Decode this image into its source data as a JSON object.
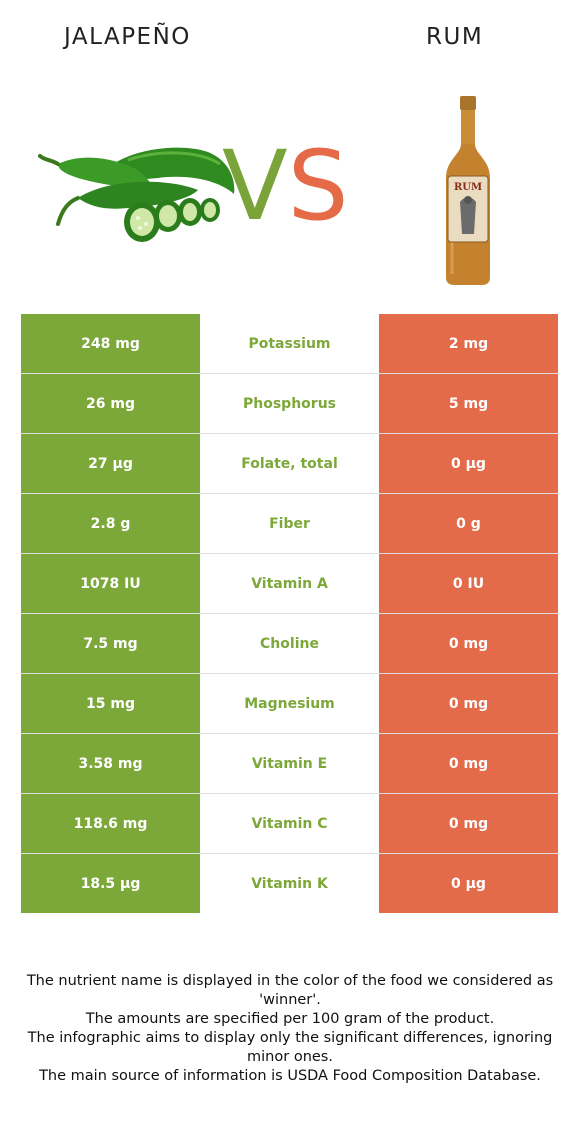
{
  "header": {
    "left_food": "JALAPEÑO",
    "right_food": "RUM",
    "vs_v": "V",
    "vs_s": "S"
  },
  "colors": {
    "winner_green": "#7ca839",
    "loser_orange": "#e46b4a"
  },
  "rows": [
    {
      "left": "248 mg",
      "nutrient": "Potassium",
      "right": "2 mg"
    },
    {
      "left": "26 mg",
      "nutrient": "Phosphorus",
      "right": "5 mg"
    },
    {
      "left": "27 µg",
      "nutrient": "Folate, total",
      "right": "0 µg"
    },
    {
      "left": "2.8 g",
      "nutrient": "Fiber",
      "right": "0 g"
    },
    {
      "left": "1078 IU",
      "nutrient": "Vitamin A",
      "right": "0 IU"
    },
    {
      "left": "7.5 mg",
      "nutrient": "Choline",
      "right": "0 mg"
    },
    {
      "left": "15 mg",
      "nutrient": "Magnesium",
      "right": "0 mg"
    },
    {
      "left": "3.58 mg",
      "nutrient": "Vitamin E",
      "right": "0 mg"
    },
    {
      "left": "118.6 mg",
      "nutrient": "Vitamin C",
      "right": "0 mg"
    },
    {
      "left": "18.5 µg",
      "nutrient": "Vitamin K",
      "right": "0 µg"
    }
  ],
  "footer": {
    "line1": "The nutrient name is displayed in the color of the food we considered as 'winner'.",
    "line2": "The amounts are specified per 100 gram of the product.",
    "line3": "The infographic aims to display only the significant differences, ignoring minor ones.",
    "line4": "The main source of information is USDA Food Composition Database."
  },
  "images": {
    "left": "jalapeno-peppers-image",
    "right": "rum-bottle-image",
    "bottle_label": "RUM"
  }
}
